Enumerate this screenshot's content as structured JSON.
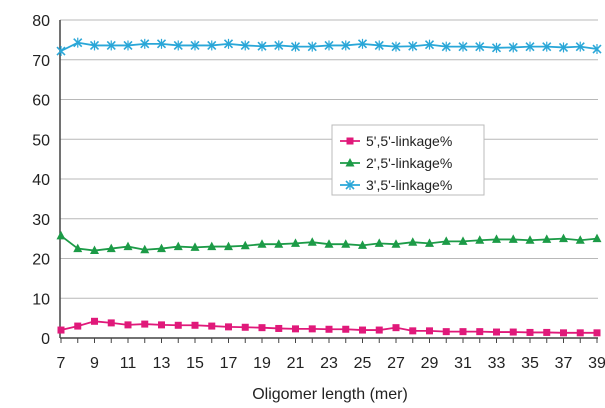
{
  "chart_data": {
    "type": "line",
    "title": "",
    "xlabel": "Oligomer length (mer)",
    "ylabel": "",
    "x": [
      7,
      8,
      9,
      10,
      11,
      12,
      13,
      14,
      15,
      16,
      17,
      18,
      19,
      20,
      21,
      22,
      23,
      24,
      25,
      26,
      27,
      28,
      29,
      30,
      31,
      32,
      33,
      34,
      35,
      36,
      37,
      38,
      39
    ],
    "xticks": [
      7,
      9,
      11,
      13,
      15,
      17,
      19,
      21,
      23,
      25,
      27,
      29,
      31,
      33,
      35,
      37,
      39
    ],
    "xlim": [
      7,
      39
    ],
    "ylim": [
      0,
      80
    ],
    "yticks": [
      0,
      10,
      20,
      30,
      40,
      50,
      60,
      70,
      80
    ],
    "grid": "horizontal",
    "legend_position": "center-right",
    "series": [
      {
        "name": "5',5'-linkage%",
        "color": "#e0197a",
        "marker": "square",
        "values": [
          2.0,
          3.0,
          4.2,
          3.8,
          3.3,
          3.5,
          3.3,
          3.2,
          3.2,
          3.0,
          2.8,
          2.7,
          2.6,
          2.4,
          2.3,
          2.3,
          2.2,
          2.2,
          2.0,
          2.0,
          2.6,
          1.8,
          1.8,
          1.6,
          1.6,
          1.6,
          1.5,
          1.5,
          1.4,
          1.4,
          1.3,
          1.3,
          1.3
        ]
      },
      {
        "name": "2',5'-linkage%",
        "color": "#1c9b47",
        "marker": "triangle",
        "values": [
          25.7,
          22.5,
          22.0,
          22.5,
          23.0,
          22.2,
          22.5,
          23.0,
          22.8,
          23.0,
          23.0,
          23.2,
          23.6,
          23.6,
          23.8,
          24.1,
          23.6,
          23.6,
          23.3,
          23.8,
          23.6,
          24.1,
          23.8,
          24.3,
          24.3,
          24.6,
          24.8,
          24.8,
          24.6,
          24.8,
          25.0,
          24.6,
          25.0
        ]
      },
      {
        "name": "3',5'-linkage%",
        "color": "#2aa7d8",
        "marker": "x",
        "values": [
          72.2,
          74.3,
          73.6,
          73.6,
          73.6,
          74.0,
          74.0,
          73.6,
          73.6,
          73.6,
          74.0,
          73.6,
          73.4,
          73.6,
          73.3,
          73.3,
          73.6,
          73.6,
          74.0,
          73.6,
          73.3,
          73.4,
          73.8,
          73.3,
          73.3,
          73.3,
          73.0,
          73.1,
          73.3,
          73.3,
          73.1,
          73.3,
          72.7
        ]
      }
    ]
  }
}
